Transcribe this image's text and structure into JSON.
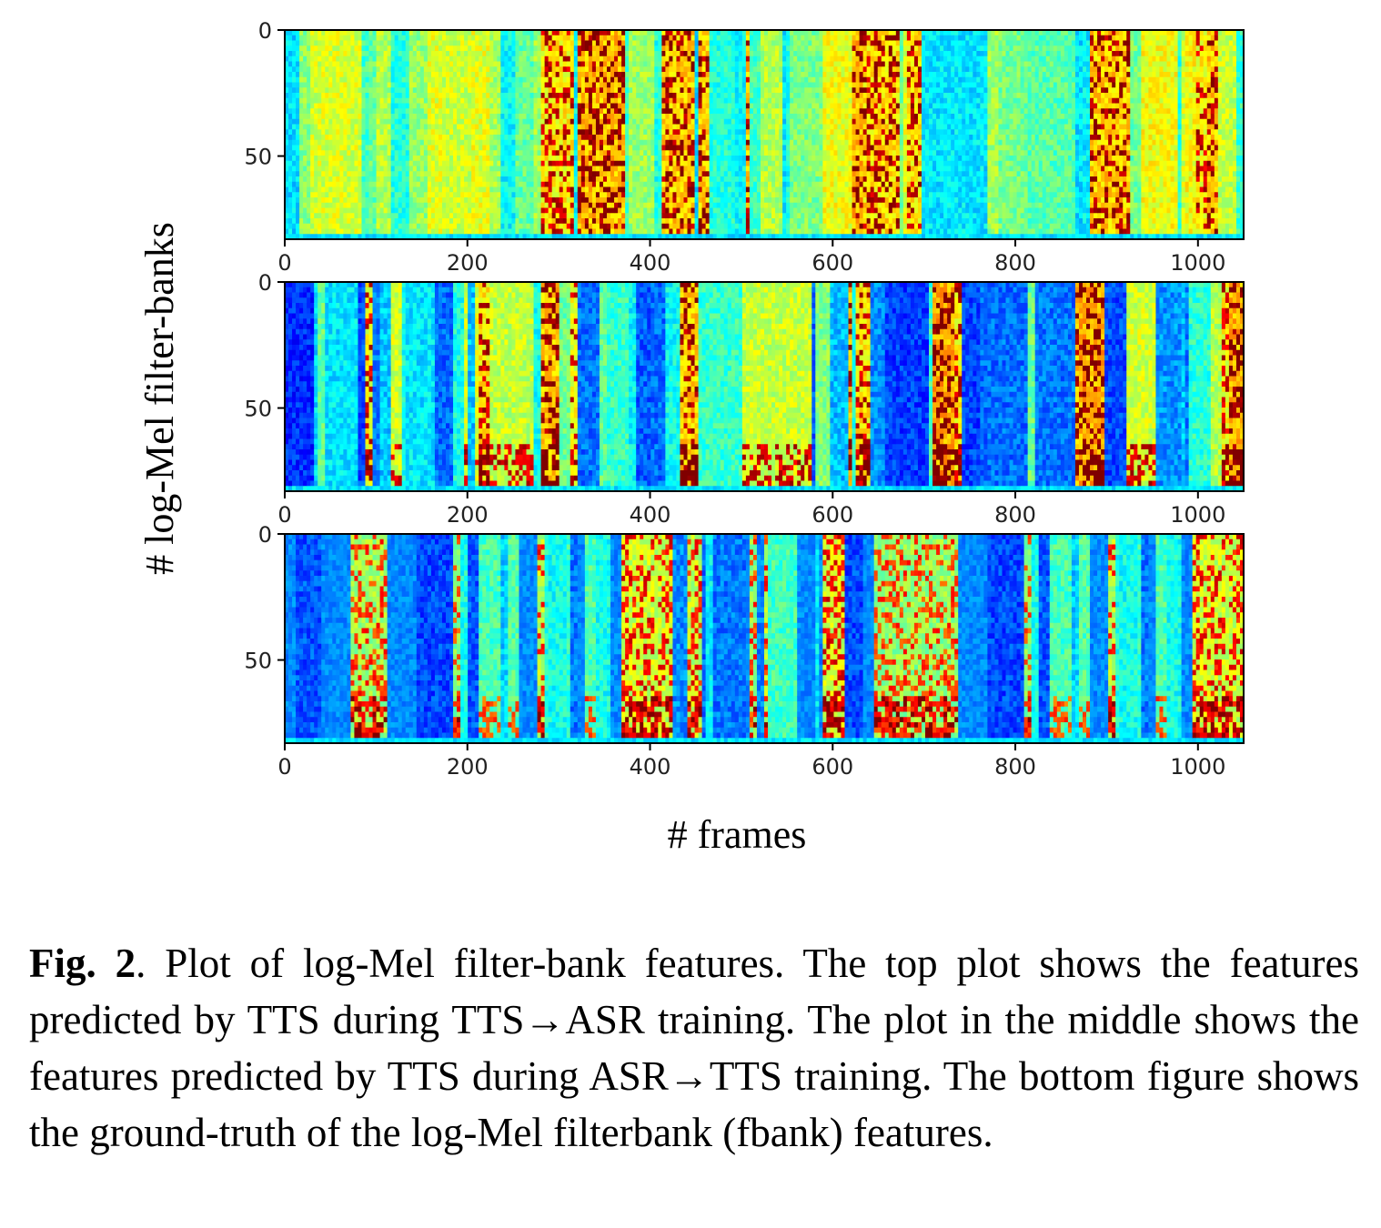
{
  "chart_data": {
    "type": "heatmap",
    "xlabel": "# frames",
    "ylabel": "# log-Mel filter-banks",
    "xlim": [
      0,
      1050
    ],
    "ylim": [
      83,
      0
    ],
    "x_ticks": [
      "0",
      "200",
      "400",
      "600",
      "800",
      "1000"
    ],
    "y_ticks": [
      "0",
      "50"
    ],
    "colormap": "jet",
    "panels": [
      {
        "name": "top",
        "description_key": "TTS→ASR predicted features"
      },
      {
        "name": "middle",
        "description_key": "ASR→TTS predicted features"
      },
      {
        "name": "bottom",
        "description_key": "ground-truth fbank features"
      }
    ]
  },
  "caption": {
    "label": "Fig. 2",
    "text": ". Plot of log-Mel filter-bank features. The top plot shows the features predicted by TTS during TTS→ASR training. The plot in the middle shows the features predicted by TTS during ASR→TTS training. The bottom figure shows the ground-truth of the log-Mel filterbank (fbank) features."
  }
}
